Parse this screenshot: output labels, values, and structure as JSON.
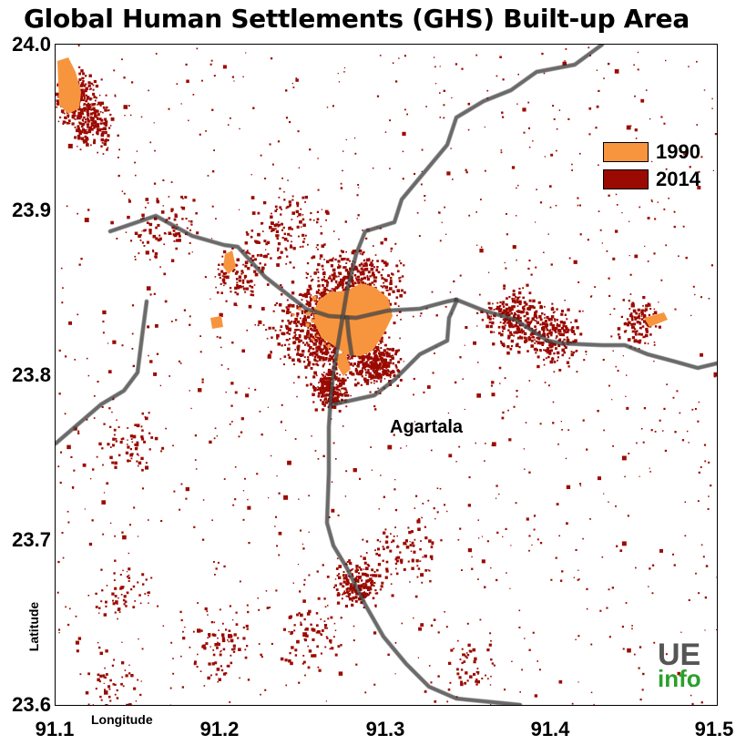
{
  "title": "Global Human Settlements (GHS) Built-up Area",
  "map": {
    "x_axis": {
      "label": "Longitude",
      "range": [
        91.1,
        91.5
      ],
      "ticks": [
        "91.1",
        "91.2",
        "91.3",
        "91.4",
        "91.5"
      ]
    },
    "y_axis": {
      "label": "Latitude",
      "range": [
        23.6,
        24.0
      ],
      "ticks": [
        "24.0",
        "23.9",
        "23.8",
        "23.7",
        "23.6"
      ]
    },
    "legend": {
      "placement": "top-right",
      "items": [
        {
          "label": "1990",
          "color": "#f7953f"
        },
        {
          "label": "2014",
          "color": "#9b0a00"
        }
      ]
    },
    "place_label": "Agartala",
    "road_color": "#555555"
  },
  "logo": {
    "line1": "UE",
    "line2": "info"
  }
}
